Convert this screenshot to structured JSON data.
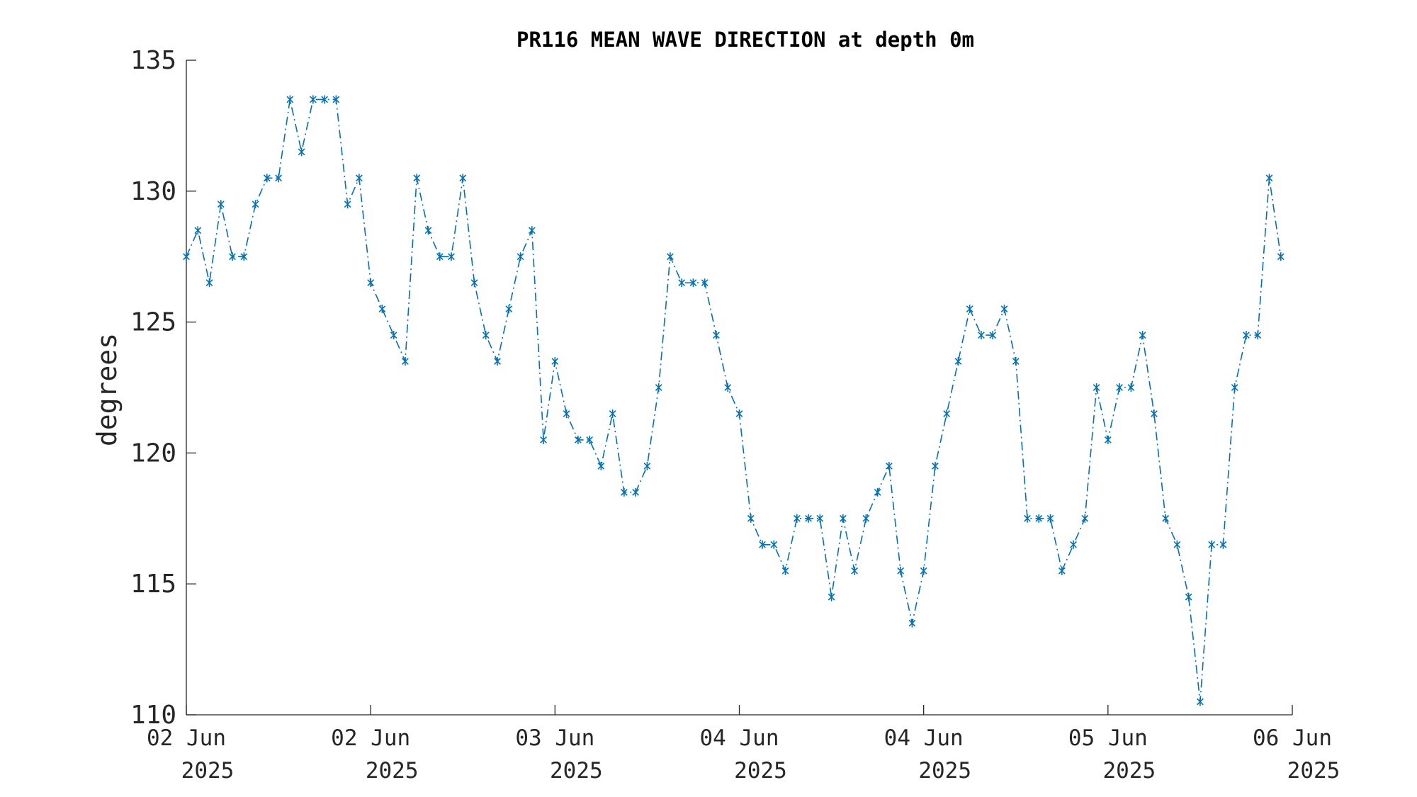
{
  "chart_data": {
    "type": "line",
    "title": "PR116 MEAN WAVE DIRECTION at depth 0m",
    "xlabel": "",
    "ylabel": "degrees",
    "ylim": [
      110,
      135
    ],
    "yticks": [
      110,
      115,
      120,
      125,
      130,
      135
    ],
    "x_start": "2025-06-02 00:00",
    "x_step_hours": 1,
    "xlim": [
      0,
      96
    ],
    "xticks": [
      {
        "x": 0,
        "line1": "02 Jun",
        "line2": "2025"
      },
      {
        "x": 16,
        "line1": "02 Jun",
        "line2": "2025"
      },
      {
        "x": 32,
        "line1": "03 Jun",
        "line2": "2025"
      },
      {
        "x": 48,
        "line1": "04 Jun",
        "line2": "2025"
      },
      {
        "x": 64,
        "line1": "04 Jun",
        "line2": "2025"
      },
      {
        "x": 80,
        "line1": "05 Jun",
        "line2": "2025"
      },
      {
        "x": 96,
        "line1": "06 Jun",
        "line2": "2025"
      }
    ],
    "series": [
      {
        "color": "#0072BD",
        "line_style": "dash-dot",
        "marker": "asterisk",
        "values": [
          127.5,
          128.5,
          126.5,
          129.5,
          127.5,
          127.5,
          129.5,
          130.5,
          130.5,
          133.5,
          131.5,
          133.5,
          133.5,
          133.5,
          129.5,
          130.5,
          126.5,
          125.5,
          124.5,
          123.5,
          130.5,
          128.5,
          127.5,
          127.5,
          130.5,
          126.5,
          124.5,
          123.5,
          125.5,
          127.5,
          128.5,
          120.5,
          123.5,
          121.5,
          120.5,
          120.5,
          119.5,
          121.5,
          118.5,
          118.5,
          119.5,
          122.5,
          127.5,
          126.5,
          126.5,
          126.5,
          124.5,
          122.5,
          121.5,
          117.5,
          116.5,
          116.5,
          115.5,
          117.5,
          117.5,
          117.5,
          114.5,
          117.5,
          115.5,
          117.5,
          118.5,
          119.5,
          115.5,
          113.5,
          115.5,
          119.5,
          121.5,
          123.5,
          125.5,
          124.5,
          124.5,
          125.5,
          123.5,
          117.5,
          117.5,
          117.5,
          115.5,
          116.5,
          117.5,
          122.5,
          120.5,
          122.5,
          122.5,
          124.5,
          121.5,
          117.5,
          116.5,
          114.5,
          110.5,
          116.5,
          116.5,
          122.5,
          124.5,
          124.5,
          130.5,
          127.5
        ]
      }
    ]
  }
}
